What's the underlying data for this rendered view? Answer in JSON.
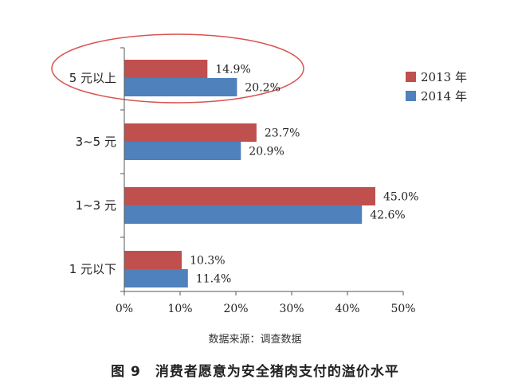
{
  "chart_data": {
    "type": "bar",
    "orientation": "horizontal",
    "categories": [
      "5 元以上",
      "3~5 元",
      "1~3 元",
      "1 元以下"
    ],
    "series": [
      {
        "name": "2013 年",
        "values": [
          14.9,
          23.7,
          45.0,
          10.3
        ],
        "labels": [
          "14.9%",
          "23.7%",
          "45.0%",
          "10.3%"
        ],
        "color": "#c0504d"
      },
      {
        "name": "2014 年",
        "values": [
          20.2,
          20.9,
          42.6,
          11.4
        ],
        "labels": [
          "20.2%",
          "20.9%",
          "42.6%",
          "11.4%"
        ],
        "color": "#4f81bd"
      }
    ],
    "xlim": [
      0,
      50
    ],
    "xticks": [
      "0%",
      "10%",
      "20%",
      "30%",
      "40%",
      "50%"
    ],
    "grid": false,
    "legend": "right",
    "annotation": "ellipse around 5 元以上",
    "annotation_color": "#d9534f"
  },
  "source": "数据来源：调查数据",
  "caption": "图 9　消费者愿意为安全猪肉支付的溢价水平"
}
